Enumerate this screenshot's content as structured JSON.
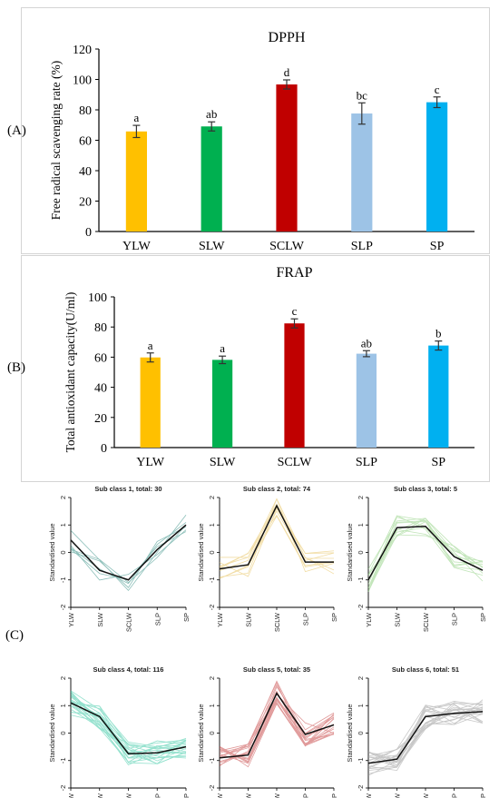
{
  "panels": {
    "a": "(A)",
    "b": "(B)",
    "c": "(C)"
  },
  "chart_data": [
    {
      "type": "bar",
      "panel": "(A)",
      "title": "DPPH",
      "ylabel": "Free radical scavenging rate (%)",
      "xlabel": "",
      "categories": [
        "YLW",
        "SLW",
        "SCLW",
        "SLP",
        "SP"
      ],
      "values": [
        65.8,
        69.1,
        96.7,
        77.6,
        85.0
      ],
      "errors": [
        4.0,
        3.0,
        3.0,
        7.0,
        3.5
      ],
      "letters": [
        "a",
        "ab",
        "d",
        "bc",
        "c"
      ],
      "colors": [
        "#FFC000",
        "#00B050",
        "#C00000",
        "#9DC3E6",
        "#00B0F0"
      ],
      "ylim": [
        0,
        120
      ],
      "yticks": [
        0,
        20,
        40,
        60,
        80,
        100,
        120
      ],
      "grid": false
    },
    {
      "type": "bar",
      "panel": "(B)",
      "title": "FRAP",
      "ylabel": "Total antioxidant capacity(U/ml)",
      "xlabel": "",
      "categories": [
        "YLW",
        "SLW",
        "SCLW",
        "SLP",
        "SP"
      ],
      "values": [
        59.8,
        58.2,
        82.4,
        62.3,
        67.7
      ],
      "errors": [
        3.0,
        2.5,
        3.0,
        2.0,
        3.0
      ],
      "letters": [
        "a",
        "a",
        "c",
        "ab",
        "b"
      ],
      "colors": [
        "#FFC000",
        "#00B050",
        "#C00000",
        "#9DC3E6",
        "#00B0F0"
      ],
      "ylim": [
        0,
        100
      ],
      "yticks": [
        0,
        20,
        40,
        60,
        80,
        100
      ],
      "grid": false
    },
    {
      "type": "line",
      "panel": "(C)",
      "title": "Sub class 1, total: 30",
      "ylabel": "Standardised value",
      "categories": [
        "YLW",
        "SLW",
        "SCLW",
        "SLP",
        "SP"
      ],
      "ylim": [
        -2,
        2
      ],
      "yticks": [
        -2,
        -1,
        0,
        1,
        2
      ],
      "color": "#2E8B80",
      "mean": [
        0.45,
        -0.65,
        -1.0,
        0.1,
        1.0
      ]
    },
    {
      "type": "line",
      "panel": "(C)",
      "title": "Sub class 2, total: 74",
      "ylabel": "Standardised value",
      "categories": [
        "YLW",
        "SLW",
        "SCLW",
        "SLP",
        "SP"
      ],
      "ylim": [
        -2,
        2
      ],
      "yticks": [
        -2,
        -1,
        0,
        1,
        2
      ],
      "color": "#E6C15A",
      "mean": [
        -0.6,
        -0.45,
        1.7,
        -0.35,
        -0.35
      ]
    },
    {
      "type": "line",
      "panel": "(C)",
      "title": "Sub class 3, total: 5",
      "ylabel": "Standardised value",
      "categories": [
        "YLW",
        "SLW",
        "SCLW",
        "SLP",
        "SP"
      ],
      "ylim": [
        -2,
        2
      ],
      "yticks": [
        -2,
        -1,
        0,
        1,
        2
      ],
      "color": "#90D080",
      "mean": [
        -1.0,
        0.9,
        0.95,
        -0.15,
        -0.65
      ]
    },
    {
      "type": "line",
      "panel": "(C)",
      "title": "Sub class 4, total: 116",
      "ylabel": "Standardised value",
      "categories": [
        "YLW",
        "SLW",
        "SCLW",
        "SLP",
        "SP"
      ],
      "ylim": [
        -2,
        2
      ],
      "yticks": [
        -2,
        -1,
        0,
        1,
        2
      ],
      "color": "#3CC9A6",
      "mean": [
        1.1,
        0.6,
        -0.75,
        -0.72,
        -0.5
      ]
    },
    {
      "type": "line",
      "panel": "(C)",
      "title": "Sub class 5, total: 35",
      "ylabel": "Standardised value",
      "categories": [
        "YLW",
        "SLW",
        "SCLW",
        "SLP",
        "SP"
      ],
      "ylim": [
        -2,
        2
      ],
      "yticks": [
        -2,
        -1,
        0,
        1,
        2
      ],
      "color": "#C84848",
      "mean": [
        -0.9,
        -0.8,
        1.45,
        -0.05,
        0.3
      ]
    },
    {
      "type": "line",
      "panel": "(C)",
      "title": "Sub class 6, total: 51",
      "ylabel": "Standardised value",
      "categories": [
        "YLW",
        "SLW",
        "SCLW",
        "SLP",
        "SP"
      ],
      "ylim": [
        -2,
        2
      ],
      "yticks": [
        -2,
        -1,
        0,
        1,
        2
      ],
      "color": "#9A9A9A",
      "mean": [
        -1.1,
        -0.95,
        0.6,
        0.72,
        0.78
      ]
    }
  ]
}
